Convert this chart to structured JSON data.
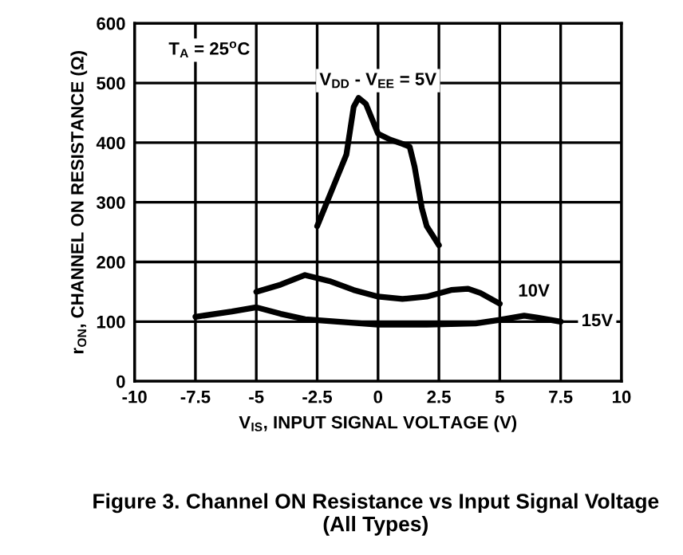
{
  "chart_data": {
    "type": "line",
    "xlabel": "V$_{IS}$, INPUT SIGNAL VOLTAGE (V)",
    "ylabel": "r$_{ON}$, CHANNEL ON RESISTANCE (Ω)",
    "xlim": [
      -10,
      10
    ],
    "ylim": [
      0,
      600
    ],
    "xticks": [
      -10,
      -7.5,
      -5,
      -2.5,
      0,
      2.5,
      5,
      7.5,
      10
    ],
    "yticks": [
      0,
      100,
      200,
      300,
      400,
      500,
      600
    ],
    "grid": true,
    "line_style": "solid",
    "marker": "none",
    "series": [
      {
        "color": "#000000",
        "x": [
          -2.5,
          -1.8,
          -1.3,
          -1,
          -0.8,
          -0.5,
          0,
          0.5,
          1,
          1.3,
          1.5,
          1.8,
          2,
          2.5
        ],
        "values": [
          260,
          330,
          380,
          460,
          475,
          465,
          415,
          405,
          398,
          393,
          360,
          290,
          260,
          228
        ]
      },
      {
        "color": "#000000",
        "x": [
          -5,
          -4,
          -3,
          -2,
          -1,
          0,
          1,
          2,
          3,
          3.7,
          4.2,
          5
        ],
        "values": [
          150,
          162,
          178,
          168,
          153,
          142,
          138,
          142,
          153,
          155,
          148,
          130
        ]
      },
      {
        "color": "#000000",
        "x": [
          -7.5,
          -6,
          -5,
          -4,
          -3,
          -1,
          0,
          2,
          4,
          5,
          6,
          6.5,
          7.5
        ],
        "values": [
          108,
          117,
          124,
          113,
          104,
          98,
          95,
          95,
          97,
          103,
          110,
          107,
          100
        ]
      }
    ],
    "annotations": [
      "T$_{A}$ = 25$^{o}$C",
      "V$_{DD}$ - V$_{EE}$ = 5V",
      {
        "text": "10V",
        "x": 6.4,
        "y": 150
      },
      {
        "text": "15V",
        "x": 9.0,
        "y": 100
      },
      "Figure 3. Channel ON Resistance vs Input Signal Voltage\n(All Types)"
    ]
  }
}
